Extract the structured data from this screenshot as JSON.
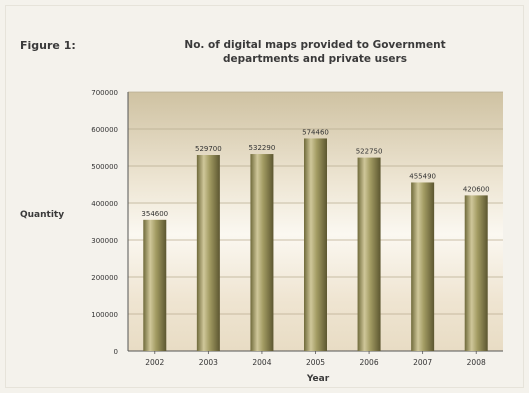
{
  "figure_label": "Figure 1:",
  "chart_data": {
    "type": "bar",
    "title": "No. of digital maps provided to Government departments and private users",
    "title_lines": [
      "No. of digital maps provided to Government",
      "departments and private users"
    ],
    "xlabel": "Year",
    "ylabel": "Quantity",
    "categories": [
      "2002",
      "2003",
      "2004",
      "2005",
      "2006",
      "2007",
      "2008"
    ],
    "values": [
      354600,
      529700,
      532290,
      574460,
      522750,
      455490,
      420600
    ],
    "value_labels": [
      "354600",
      "529700",
      "532290",
      "574460",
      "522750",
      "455490",
      "420600"
    ],
    "ylim": [
      0,
      700000
    ],
    "yticks": [
      0,
      100000,
      200000,
      300000,
      400000,
      500000,
      600000,
      700000
    ],
    "ytick_labels": [
      "0",
      "100000",
      "200000",
      "300000",
      "400000",
      "500000",
      "600000",
      "700000"
    ],
    "grid": true,
    "legend": "none"
  }
}
